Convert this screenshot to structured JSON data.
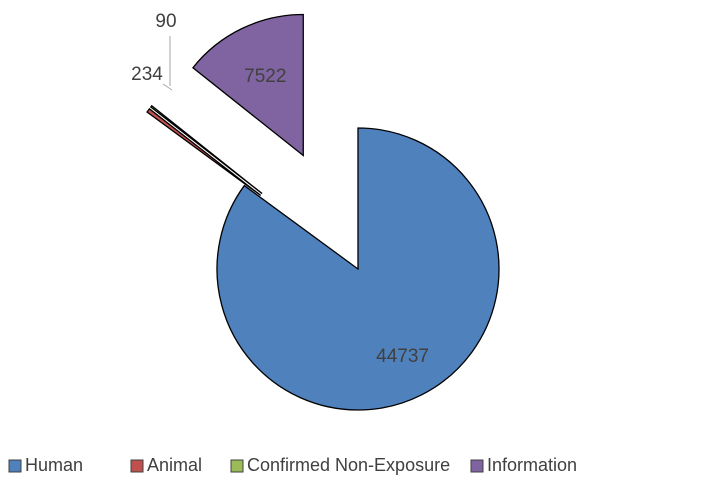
{
  "chart_data": {
    "type": "pie",
    "categories": [
      "Human",
      "Animal",
      "Confirmed Non-Exposure",
      "Information"
    ],
    "values": [
      44737,
      234,
      90,
      7522
    ],
    "colors": [
      "#4f81bd",
      "#c0504d",
      "#9bbb59",
      "#8064a2"
    ],
    "legend": "bottom"
  }
}
